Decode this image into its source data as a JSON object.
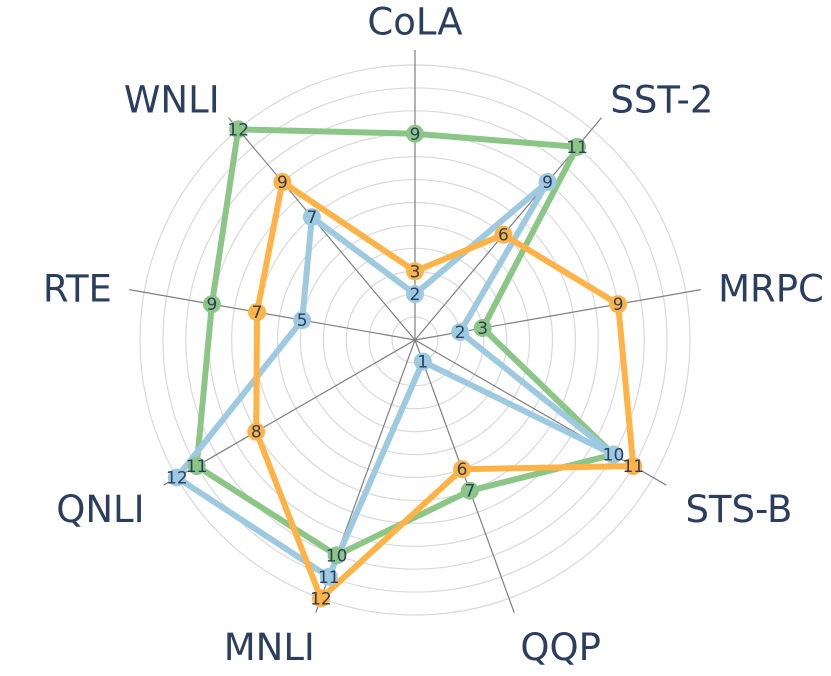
{
  "chart_data": {
    "type": "radar",
    "title": "",
    "axes": [
      "CoLA",
      "SST-2",
      "MRPC",
      "STS-B",
      "QQP",
      "MNLI",
      "QNLI",
      "RTE",
      "WNLI"
    ],
    "rlim": [
      0,
      12
    ],
    "grid": true,
    "legend": "none",
    "series": [
      {
        "color": "#8cc687",
        "values": [
          9,
          11,
          3,
          10,
          7,
          10,
          11,
          9,
          12
        ]
      },
      {
        "color": "#9ecae1",
        "values": [
          2,
          9,
          2,
          10,
          1,
          11,
          12,
          5,
          7
        ]
      },
      {
        "color": "#ffb347",
        "values": [
          3,
          6,
          9,
          11,
          6,
          12,
          8,
          7,
          9
        ]
      }
    ]
  }
}
